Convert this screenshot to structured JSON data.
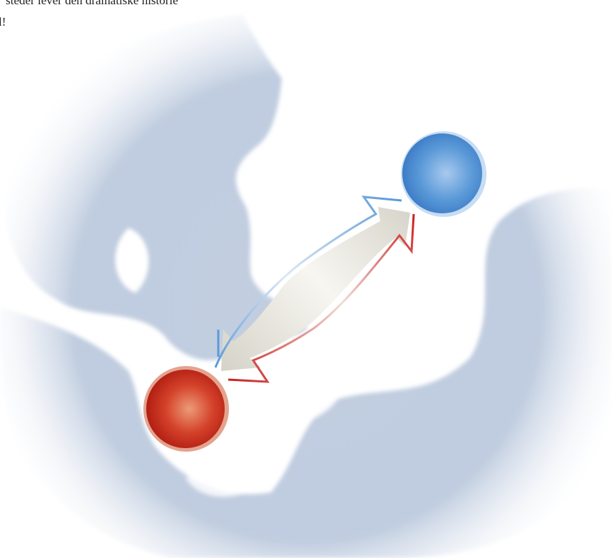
{
  "caption": {
    "lines": [
      "steder lever den dramatiske historie",
      "l!"
    ]
  }
}
